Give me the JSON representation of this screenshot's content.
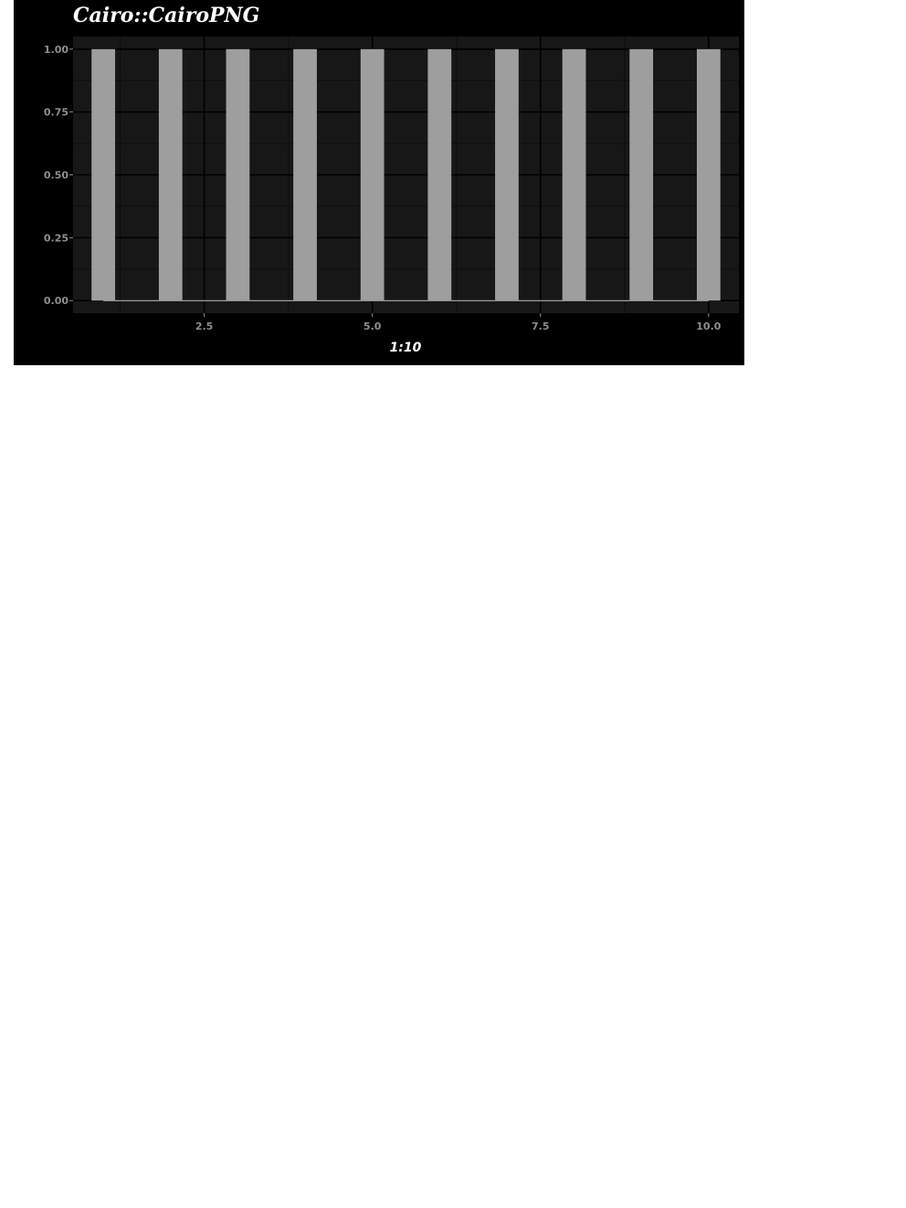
{
  "chart_data": {
    "type": "bar",
    "title": "Cairo::CairoPNG",
    "xlabel": "1:10",
    "ylabel": "",
    "x": [
      1,
      2,
      3,
      4,
      5,
      6,
      7,
      8,
      9,
      10
    ],
    "values": [
      1,
      1,
      1,
      1,
      1,
      1,
      1,
      1,
      1,
      1
    ],
    "xlim": [
      0.55,
      10.45
    ],
    "ylim": [
      -0.05,
      1.05
    ],
    "x_ticks": [
      "2.5",
      "5.0",
      "7.5",
      "10.0"
    ],
    "y_ticks": [
      "0.00",
      "0.25",
      "0.50",
      "0.75",
      "1.00"
    ],
    "grid": true,
    "legend": "none",
    "colors": {
      "background": "#000000",
      "panel": "#171717",
      "grid_major": "#000000",
      "bar_fill": "#9e9e9e",
      "text": "#ffffff",
      "tick_text": "#8e8e8e"
    }
  }
}
